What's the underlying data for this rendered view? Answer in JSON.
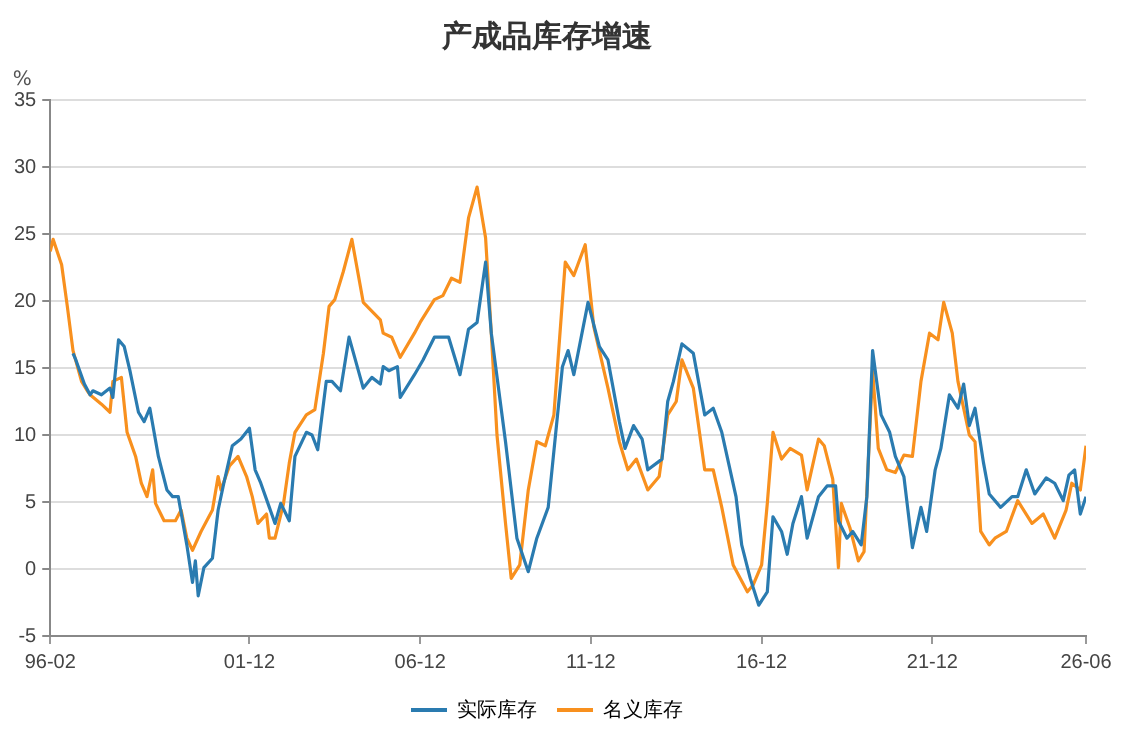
{
  "chart_data": {
    "type": "line",
    "title": "产成品库存增速",
    "ylabel": "%",
    "xlim": [
      "1996-02",
      "2026-06"
    ],
    "xticks": [
      {
        "value": "1996-02",
        "label": "96-02"
      },
      {
        "value": "2001-12",
        "label": "01-12"
      },
      {
        "value": "2006-12",
        "label": "06-12"
      },
      {
        "value": "2011-12",
        "label": "11-12"
      },
      {
        "value": "2016-12",
        "label": "16-12"
      },
      {
        "value": "2021-12",
        "label": "21-12"
      },
      {
        "value": "2026-06",
        "label": "26-06"
      }
    ],
    "ylim": [
      -5,
      35
    ],
    "yticks": [
      -5,
      0,
      5,
      10,
      15,
      20,
      25,
      30,
      35
    ],
    "grid": "y",
    "legend": "bottom",
    "marker": "none",
    "line_style": "solid",
    "series": [
      {
        "name": "实际库存",
        "color": "#2a7bb0",
        "x": [
          "1996-10",
          "1996-11",
          "1997-02",
          "1997-04",
          "1997-05",
          "1997-08",
          "1997-11",
          "1997-12",
          "1998-02",
          "1998-04",
          "1998-06",
          "1998-09",
          "1998-11",
          "1999-01",
          "1999-04",
          "1999-07",
          "1999-09",
          "1999-11",
          "2000-02",
          "2000-04",
          "2000-05",
          "2000-06",
          "2000-08",
          "2000-11",
          "2001-01",
          "2001-03",
          "2001-06",
          "2001-09",
          "2001-12",
          "2002-02",
          "2002-04",
          "2002-07",
          "2002-09",
          "2002-11",
          "2003-02",
          "2003-04",
          "2003-08",
          "2003-10",
          "2003-12",
          "2004-03",
          "2004-05",
          "2004-08",
          "2004-11",
          "2005-04",
          "2005-07",
          "2005-10",
          "2005-11",
          "2006-01",
          "2006-04",
          "2006-05",
          "2006-10",
          "2007-01",
          "2007-05",
          "2007-10",
          "2008-02",
          "2008-05",
          "2008-08",
          "2008-11",
          "2009-01",
          "2009-06",
          "2009-10",
          "2010-02",
          "2010-05",
          "2010-09",
          "2011-02",
          "2011-04",
          "2011-06",
          "2011-11",
          "2012-03",
          "2012-06",
          "2012-10",
          "2012-12",
          "2013-03",
          "2013-06",
          "2013-08",
          "2014-01",
          "2014-03",
          "2014-05",
          "2014-08",
          "2014-12",
          "2015-04",
          "2015-07",
          "2015-10",
          "2016-03",
          "2016-05",
          "2016-08",
          "2016-11",
          "2017-02",
          "2017-04",
          "2017-07",
          "2017-09",
          "2017-11",
          "2018-02",
          "2018-04",
          "2018-08",
          "2018-11",
          "2019-02",
          "2019-03",
          "2019-06",
          "2019-08",
          "2019-11",
          "2020-01",
          "2020-03",
          "2020-06",
          "2020-09",
          "2020-11",
          "2021-02",
          "2021-05",
          "2021-08",
          "2021-10",
          "2022-01",
          "2022-03",
          "2022-06",
          "2022-09",
          "2022-11",
          "2023-01",
          "2023-03",
          "2023-06",
          "2023-08",
          "2023-12",
          "2024-04",
          "2024-06",
          "2024-09",
          "2024-12",
          "2025-04",
          "2025-07",
          "2025-10",
          "2025-12",
          "2026-02",
          "2026-04",
          "2026-06"
        ],
        "values": [
          16.1,
          15.6,
          13.8,
          13.0,
          13.3,
          13.0,
          13.5,
          12.8,
          17.1,
          16.6,
          14.8,
          11.7,
          11.0,
          12.0,
          8.4,
          5.9,
          5.4,
          5.4,
          1.8,
          -1.0,
          0.6,
          -2.0,
          0.1,
          0.8,
          4.4,
          6.4,
          9.2,
          9.7,
          10.5,
          7.4,
          6.4,
          4.6,
          3.4,
          4.9,
          3.6,
          8.4,
          10.2,
          10.0,
          8.9,
          14.0,
          14.0,
          13.3,
          17.3,
          13.5,
          14.3,
          13.8,
          15.1,
          14.8,
          15.1,
          12.8,
          14.5,
          15.6,
          17.3,
          17.3,
          14.5,
          17.9,
          18.4,
          22.9,
          17.6,
          9.5,
          2.3,
          -0.2,
          2.3,
          4.6,
          15.1,
          16.3,
          14.5,
          19.9,
          16.6,
          15.6,
          11.0,
          9.0,
          10.7,
          9.7,
          7.4,
          8.2,
          12.5,
          14.0,
          16.8,
          16.1,
          11.5,
          12.0,
          10.2,
          5.4,
          1.8,
          -0.7,
          -2.7,
          -1.7,
          3.9,
          2.8,
          1.1,
          3.4,
          5.4,
          2.3,
          5.4,
          6.2,
          6.2,
          3.6,
          2.3,
          2.8,
          1.8,
          5.4,
          16.3,
          11.5,
          10.2,
          8.4,
          6.9,
          1.6,
          4.6,
          2.8,
          7.4,
          9.0,
          13.0,
          12.0,
          13.8,
          10.7,
          12.0,
          7.9,
          5.6,
          4.6,
          5.4,
          5.4,
          7.4,
          5.6,
          6.8,
          6.4,
          5.1,
          7.0,
          7.4,
          4.1,
          5.4
        ]
      },
      {
        "name": "名义库存",
        "color": "#f8901e",
        "x": [
          "1996-02",
          "1996-03",
          "1996-06",
          "1996-08",
          "1996-10",
          "1997-01",
          "1997-03",
          "1997-04",
          "1997-08",
          "1997-11",
          "1997-12",
          "1998-03",
          "1998-05",
          "1998-08",
          "1998-10",
          "1998-12",
          "1999-02",
          "1999-03",
          "1999-06",
          "1999-10",
          "1999-12",
          "2000-02",
          "2000-04",
          "2000-07",
          "2000-11",
          "2001-01",
          "2001-02",
          "2001-05",
          "2001-08",
          "2001-11",
          "2002-01",
          "2002-03",
          "2002-06",
          "2002-07",
          "2002-09",
          "2002-12",
          "2003-02",
          "2003-04",
          "2003-08",
          "2003-11",
          "2004-02",
          "2004-04",
          "2004-06",
          "2004-09",
          "2004-12",
          "2005-04",
          "2005-10",
          "2005-11",
          "2006-02",
          "2006-05",
          "2006-10",
          "2006-12",
          "2007-05",
          "2007-08",
          "2007-11",
          "2008-02",
          "2008-05",
          "2008-08",
          "2008-11",
          "2009-01",
          "2009-03",
          "2009-06",
          "2009-08",
          "2009-11",
          "2010-02",
          "2010-05",
          "2010-08",
          "2010-11",
          "2011-03",
          "2011-06",
          "2011-10",
          "2012-01",
          "2012-06",
          "2012-10",
          "2013-01",
          "2013-04",
          "2013-08",
          "2013-12",
          "2014-03",
          "2014-06",
          "2014-08",
          "2014-12",
          "2015-04",
          "2015-07",
          "2015-10",
          "2016-02",
          "2016-07",
          "2016-09",
          "2016-12",
          "2017-02",
          "2017-04",
          "2017-07",
          "2017-10",
          "2018-02",
          "2018-04",
          "2018-08",
          "2018-10",
          "2019-01",
          "2019-03",
          "2019-04",
          "2019-07",
          "2019-10",
          "2019-12",
          "2020-03",
          "2020-05",
          "2020-08",
          "2020-11",
          "2021-02",
          "2021-05",
          "2021-08",
          "2021-11",
          "2022-02",
          "2022-04",
          "2022-07",
          "2022-09",
          "2023-01",
          "2023-03",
          "2023-05",
          "2023-08",
          "2023-10",
          "2024-02",
          "2024-06",
          "2024-11",
          "2025-03",
          "2025-07",
          "2025-11",
          "2026-01",
          "2026-04",
          "2026-06"
        ],
        "values": [
          23.7,
          24.6,
          22.7,
          19.6,
          16.3,
          14.0,
          13.3,
          13.0,
          12.3,
          11.7,
          14.0,
          14.3,
          10.2,
          8.4,
          6.4,
          5.4,
          7.4,
          4.9,
          3.6,
          3.6,
          4.4,
          2.3,
          1.4,
          2.8,
          4.4,
          6.9,
          5.9,
          7.7,
          8.4,
          6.9,
          5.4,
          3.4,
          4.1,
          2.3,
          2.3,
          4.9,
          7.9,
          10.2,
          11.5,
          11.9,
          16.1,
          19.6,
          20.1,
          22.2,
          24.6,
          19.9,
          18.6,
          17.6,
          17.3,
          15.8,
          17.6,
          18.4,
          20.1,
          20.4,
          21.7,
          21.4,
          26.2,
          28.5,
          24.7,
          17.6,
          10.0,
          3.4,
          -0.7,
          0.3,
          5.9,
          9.5,
          9.2,
          11.5,
          22.9,
          21.9,
          24.2,
          18.1,
          13.5,
          9.5,
          7.4,
          8.2,
          5.9,
          6.9,
          11.5,
          12.5,
          15.6,
          13.5,
          7.4,
          7.4,
          4.6,
          0.3,
          -1.7,
          -1.2,
          0.3,
          4.9,
          10.2,
          8.2,
          9.0,
          8.5,
          5.9,
          9.7,
          9.2,
          6.7,
          0.1,
          4.9,
          3.1,
          0.6,
          1.3,
          14.8,
          9.0,
          7.4,
          7.2,
          8.5,
          8.4,
          14.0,
          17.6,
          17.1,
          19.9,
          17.6,
          14.0,
          10.0,
          9.5,
          2.8,
          1.8,
          2.3,
          2.8,
          5.1,
          3.4,
          4.1,
          2.3,
          4.4,
          6.4,
          5.9,
          9.2
        ]
      }
    ]
  }
}
